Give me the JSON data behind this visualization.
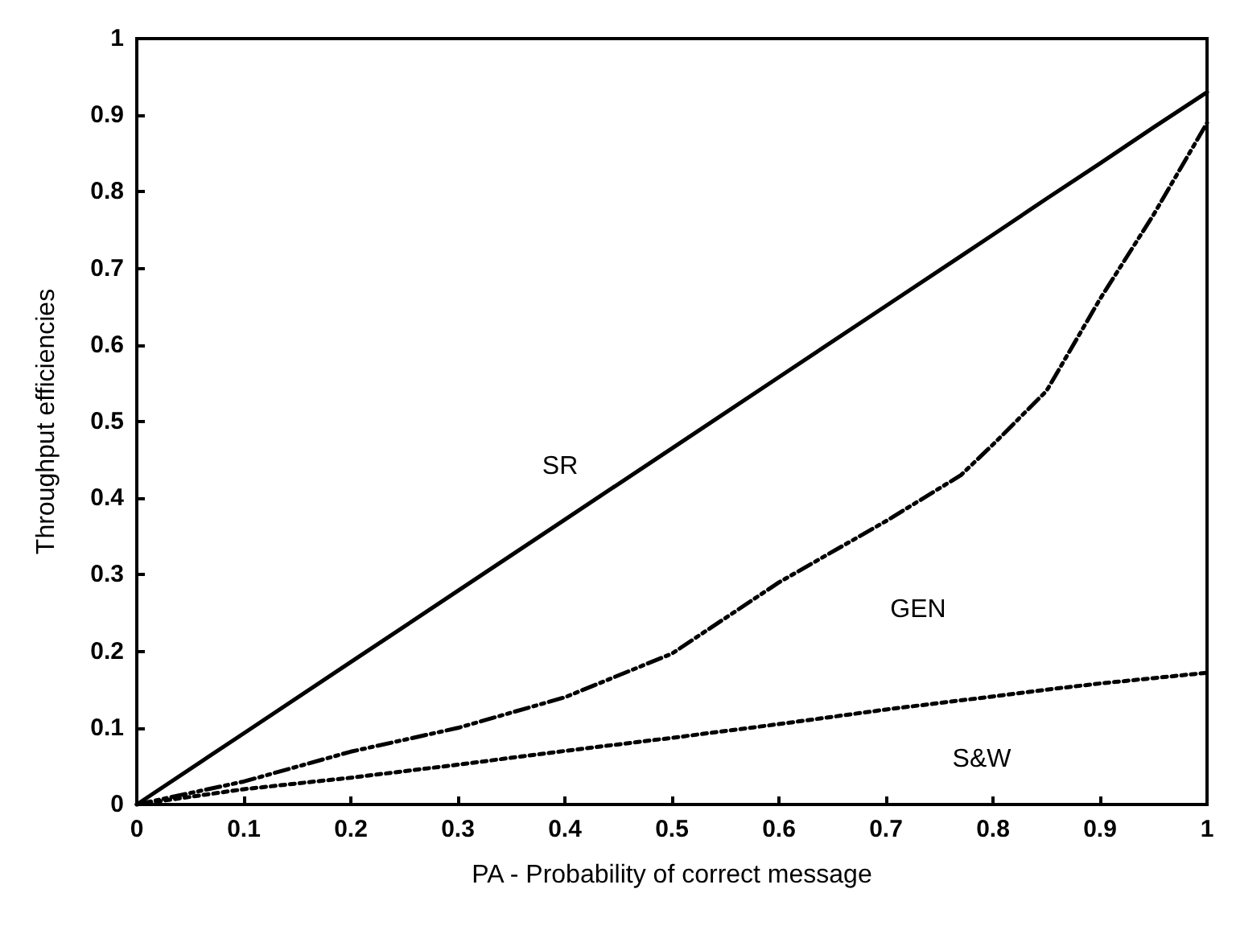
{
  "chart_data": {
    "type": "line",
    "xlabel": "PA - Probability of correct message",
    "ylabel": "Throughput efficiencies",
    "x": [
      0,
      0.1,
      0.2,
      0.3,
      0.4,
      0.5,
      0.6,
      0.7,
      0.77,
      0.8,
      0.85,
      0.9,
      0.95,
      1
    ],
    "series": [
      {
        "name": "SR",
        "color": "#000000",
        "line_style": "solid",
        "values": [
          0,
          0.093,
          0.186,
          0.279,
          0.372,
          0.465,
          0.558,
          0.651,
          0.716,
          0.744,
          0.791,
          0.837,
          0.884,
          0.93
        ]
      },
      {
        "name": "GEN",
        "color": "#000000",
        "line_style": "dashed",
        "values": [
          0,
          0.03,
          0.069,
          0.1,
          0.14,
          0.197,
          0.29,
          0.37,
          0.43,
          0.47,
          0.54,
          0.66,
          0.77,
          0.89
        ]
      },
      {
        "name": "S&W",
        "color": "#000000",
        "line_style": "dotted",
        "values": [
          0,
          0.02,
          0.035,
          0.052,
          0.07,
          0.087,
          0.105,
          0.124,
          0.136,
          0.141,
          0.15,
          0.158,
          0.165,
          0.172
        ]
      }
    ],
    "xlim": [
      0,
      1
    ],
    "xticks": [
      0,
      0.1,
      0.2,
      0.3,
      0.4,
      0.5,
      0.6,
      0.7,
      0.8,
      0.9,
      1
    ],
    "ylim": [
      0,
      1
    ],
    "yticks": [
      0,
      0.1,
      0.2,
      0.3,
      0.4,
      0.5,
      0.6,
      0.7,
      0.8,
      0.9,
      1
    ],
    "grid": false,
    "legend": false,
    "marker": "none"
  }
}
